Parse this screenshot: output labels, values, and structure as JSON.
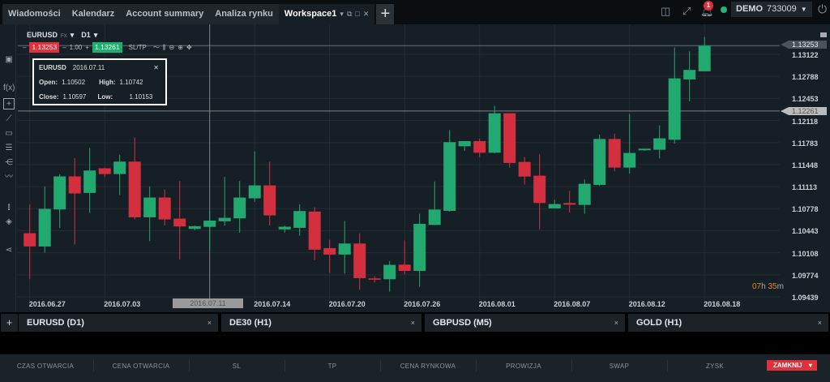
{
  "tabs": [
    {
      "label": "Wiadomości"
    },
    {
      "label": "Kalendarz"
    },
    {
      "label": "Account summary"
    },
    {
      "label": "Analiza rynku"
    },
    {
      "label": "Workspace1",
      "active": true
    }
  ],
  "tab_add": "+",
  "topbar": {
    "notifications": "1",
    "account_type": "DEMO",
    "account_number": "733009",
    "status_color": "#22b573"
  },
  "instrument": {
    "symbol": "EURUSD",
    "market": "FX",
    "timeframe": "D1",
    "sell_price": "1.13253",
    "volume": "1.00",
    "buy_price": "1.13261",
    "sltp": "SL/TP"
  },
  "tooltip": {
    "symbol": "EURUSD",
    "date": "2016.07.11",
    "open_label": "Open:",
    "open": "1.10502",
    "high_label": "High:",
    "high": "1.10742",
    "close_label": "Close:",
    "close": "1.10597",
    "low_label": "Low:",
    "low": "1.10153"
  },
  "countdown": {
    "h": "07",
    "h_unit": "h",
    "m": "35",
    "m_unit": "m"
  },
  "chart_data": {
    "type": "candlestick",
    "colors": {
      "up": "#22a96f",
      "down": "#d32f3e"
    },
    "y_ticks": [
      "1.13122",
      "1.12788",
      "1.12453",
      "1.12118",
      "1.11783",
      "1.11448",
      "1.11113",
      "1.10778",
      "1.10443",
      "1.10108",
      "1.09774",
      "1.09439"
    ],
    "ylim": [
      1.09439,
      1.13122
    ],
    "x_ticks": [
      {
        "label": "2016.06.27",
        "index": 0
      },
      {
        "label": "2016.07.03",
        "index": 5
      },
      {
        "label": "2016.07.14",
        "index": 15
      },
      {
        "label": "2016.07.20",
        "index": 20
      },
      {
        "label": "2016.07.26",
        "index": 25
      },
      {
        "label": "2016.08.01",
        "index": 30
      },
      {
        "label": "2016.08.07",
        "index": 35
      },
      {
        "label": "2016.08.12",
        "index": 40
      },
      {
        "label": "2016.08.18",
        "index": 45
      }
    ],
    "crosshair": {
      "date": "2016.07.11",
      "index": 12,
      "price": "1.12261"
    },
    "current_price": "1.13253",
    "ohlc": [
      [
        1.10405,
        1.1084,
        1.09707,
        1.10204
      ],
      [
        1.10204,
        1.11116,
        1.10109,
        1.10775
      ],
      [
        1.10766,
        1.113,
        1.10487,
        1.11268
      ],
      [
        1.11268,
        1.11547,
        1.10233,
        1.11009
      ],
      [
        1.11017,
        1.11699,
        1.10713,
        1.11358
      ],
      [
        1.11391,
        1.114,
        1.11259,
        1.11304
      ],
      [
        1.11304,
        1.11596,
        1.10984,
        1.11493
      ],
      [
        1.11493,
        1.11859,
        1.10615,
        1.10647
      ],
      [
        1.10647,
        1.11116,
        1.10286,
        1.10947
      ],
      [
        1.10947,
        1.1107,
        1.10524,
        1.10615
      ],
      [
        1.10627,
        1.11198,
        1.10007,
        1.10508
      ],
      [
        1.10471,
        1.1052,
        1.1045,
        1.10512
      ],
      [
        1.10502,
        1.10742,
        1.10153,
        1.10597
      ],
      [
        1.10586,
        1.11259,
        1.1052,
        1.10639
      ],
      [
        1.10631,
        1.11198,
        1.10413,
        1.10947
      ],
      [
        1.10935,
        1.11649,
        1.10881,
        1.11132
      ],
      [
        1.11132,
        1.11493,
        1.10524,
        1.10676
      ],
      [
        1.10463,
        1.1052,
        1.10413,
        1.10504
      ],
      [
        1.10487,
        1.10845,
        1.10368,
        1.10742
      ],
      [
        1.10734,
        1.10799,
        1.09994,
        1.10155
      ],
      [
        1.10179,
        1.10306,
        1.09801,
        1.10081
      ],
      [
        1.10081,
        1.1059,
        1.09793,
        1.10249
      ],
      [
        1.10249,
        1.10405,
        1.09543,
        1.09723
      ],
      [
        1.09719,
        1.09752,
        1.09658,
        1.09699
      ],
      [
        1.09707,
        1.09982,
        1.09518,
        1.09925
      ],
      [
        1.09928,
        1.10297,
        1.0978,
        1.09833
      ],
      [
        1.09833,
        1.107,
        1.09591,
        1.10548
      ],
      [
        1.10531,
        1.11192,
        1.10527,
        1.10765
      ],
      [
        1.10745,
        1.11973,
        1.10733,
        1.11788
      ],
      [
        1.11726,
        1.11804,
        1.11657,
        1.11804
      ],
      [
        1.11804,
        1.11841,
        1.11558,
        1.11628
      ],
      [
        1.11628,
        1.12338,
        1.1162,
        1.12227
      ],
      [
        1.12227,
        1.12227,
        1.11402,
        1.11472
      ],
      [
        1.11488,
        1.11562,
        1.11143,
        1.11266
      ],
      [
        1.11279,
        1.11603,
        1.10461,
        1.10864
      ],
      [
        1.10782,
        1.10913,
        1.10782,
        1.10848
      ],
      [
        1.10864,
        1.11049,
        1.10716,
        1.10839
      ],
      [
        1.10835,
        1.11221,
        1.107,
        1.11156
      ],
      [
        1.11139,
        1.11903,
        1.11123,
        1.11837
      ],
      [
        1.11837,
        1.11915,
        1.11349,
        1.11402
      ],
      [
        1.11402,
        1.12219,
        1.11312,
        1.11624
      ],
      [
        1.11665,
        1.11689,
        1.11657,
        1.11689
      ],
      [
        1.11673,
        1.12043,
        1.11542,
        1.11846
      ],
      [
        1.11825,
        1.13225,
        1.11767,
        1.12757
      ],
      [
        1.12741,
        1.13168,
        1.12408,
        1.12885
      ],
      [
        1.12864,
        1.13386,
        1.12864,
        1.13253
      ]
    ]
  },
  "bottom_tabs": [
    {
      "label": "EURUSD (D1)"
    },
    {
      "label": "DE30 (H1)"
    },
    {
      "label": "GBPUSD (M5)"
    },
    {
      "label": "GOLD (H1)"
    }
  ],
  "bottom_add": "+",
  "close_glyph": "×",
  "table_headers": [
    "CZAS OTWARCIA",
    "CENA OTWARCIA",
    "SL",
    "TP",
    "CENA RYNKOWA",
    "PROWIZJA",
    "SWAP",
    "ZYSK"
  ],
  "close_all": "ZAMKNIJ"
}
